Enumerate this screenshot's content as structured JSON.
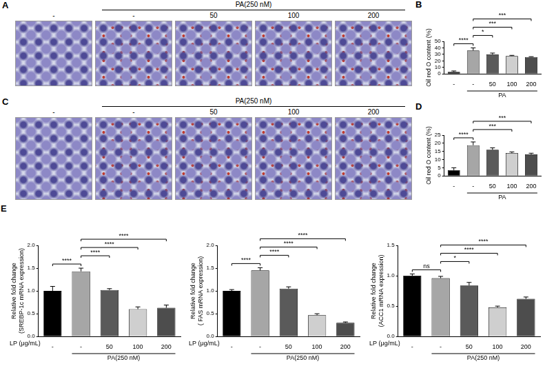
{
  "images": [
    {
      "letter": "A",
      "header": "PA(250 nM)",
      "header_from": 1,
      "header_to": 4,
      "columns": [
        "-",
        "-",
        "50",
        "100",
        "200"
      ]
    },
    {
      "letter": "C",
      "header": "PA(250 nM)",
      "header_from": 1,
      "header_to": 4,
      "columns": [
        "-",
        "-",
        "50",
        "100",
        "200"
      ]
    }
  ],
  "chart_data": [
    {
      "letter": "B",
      "type": "bar",
      "y_label": "Oil red O content (%)",
      "categories": [
        "-",
        "-",
        "50",
        "100",
        "200"
      ],
      "values": [
        3,
        36,
        30,
        27.5,
        26
      ],
      "errors": [
        1.5,
        4,
        2,
        1,
        0.5
      ],
      "colors": [
        "#000000",
        "#a6a6a6",
        "#5a5a5a",
        "#cfcfcf",
        "#4d4d4d"
      ],
      "ylim": [
        0,
        50
      ],
      "yticks": [
        0,
        10,
        20,
        30,
        40,
        50
      ],
      "grid": false,
      "group": {
        "label": "PA",
        "from": 1,
        "to": 4
      },
      "significance": [
        {
          "from": 0,
          "to": 1,
          "label": "****"
        },
        {
          "from": 1,
          "to": 2,
          "label": "*"
        },
        {
          "from": 1,
          "to": 3,
          "label": "***"
        },
        {
          "from": 1,
          "to": 4,
          "label": "***"
        }
      ]
    },
    {
      "letter": "D",
      "type": "bar",
      "y_label": "Oil red O content (%)",
      "categories": [
        "-",
        "-",
        "50",
        "100",
        "200"
      ],
      "values": [
        3.5,
        18.8,
        16,
        14,
        13.2
      ],
      "errors": [
        1.5,
        2,
        1.2,
        0.7,
        0.7
      ],
      "colors": [
        "#000000",
        "#a6a6a6",
        "#5a5a5a",
        "#cfcfcf",
        "#4d4d4d"
      ],
      "ylim": [
        0,
        25
      ],
      "yticks": [
        0,
        5,
        10,
        15,
        20,
        25
      ],
      "grid": false,
      "group": {
        "label": "PA",
        "from": 1,
        "to": 4
      },
      "significance": [
        {
          "from": 0,
          "to": 1,
          "label": "****"
        },
        {
          "from": 1,
          "to": 3,
          "label": "***"
        },
        {
          "from": 1,
          "to": 4,
          "label": "***"
        }
      ]
    },
    {
      "letter": "E",
      "type": "bar",
      "y_label": [
        "Relative fold change",
        "(SREBP-1c mRNA expression)"
      ],
      "x_label": "LP (μg/mL)",
      "categories": [
        "-",
        "-",
        "50",
        "100",
        "200"
      ],
      "values": [
        1.0,
        1.43,
        1.02,
        0.6,
        0.63
      ],
      "errors": [
        0.1,
        0.07,
        0.03,
        0.05,
        0.06
      ],
      "colors": [
        "#000000",
        "#a6a6a6",
        "#5a5a5a",
        "#cfcfcf",
        "#4d4d4d"
      ],
      "ylim": [
        0,
        2
      ],
      "yticks": [
        {
          "value": 0,
          "label": "0.0"
        },
        {
          "value": 0.5,
          "label": "0.5"
        },
        {
          "value": 1,
          "label": "1.0"
        },
        {
          "value": 1.5,
          "label": "1.5"
        },
        {
          "value": 2,
          "label": "2.0"
        }
      ],
      "grid": false,
      "group": {
        "label": "PA(250 nM)",
        "from": 1,
        "to": 4
      },
      "significance": [
        {
          "from": 0,
          "to": 1,
          "label": "****"
        },
        {
          "from": 1,
          "to": 2,
          "label": "****"
        },
        {
          "from": 1,
          "to": 3,
          "label": "****"
        },
        {
          "from": 1,
          "to": 4,
          "label": "****"
        }
      ]
    },
    {
      "type": "bar",
      "y_label": [
        "Relative fold change",
        "( FAS mRNA expression)"
      ],
      "x_label": "LP (μg/mL)",
      "categories": [
        "-",
        "-",
        "50",
        "100",
        "200"
      ],
      "values": [
        1.0,
        1.45,
        1.05,
        0.47,
        0.3
      ],
      "errors": [
        0.03,
        0.06,
        0.04,
        0.03,
        0.02
      ],
      "colors": [
        "#000000",
        "#a6a6a6",
        "#5a5a5a",
        "#cfcfcf",
        "#4d4d4d"
      ],
      "ylim": [
        0,
        2
      ],
      "yticks": [
        {
          "value": 0,
          "label": "0.0"
        },
        {
          "value": 0.5,
          "label": "0.5"
        },
        {
          "value": 1,
          "label": "1.0"
        },
        {
          "value": 1.5,
          "label": "1.5"
        },
        {
          "value": 2,
          "label": "2.0"
        }
      ],
      "grid": false,
      "group": {
        "label": "PA(250 nM)",
        "from": 1,
        "to": 4
      },
      "significance": [
        {
          "from": 0,
          "to": 1,
          "label": "****"
        },
        {
          "from": 1,
          "to": 2,
          "label": "****"
        },
        {
          "from": 1,
          "to": 3,
          "label": "****"
        },
        {
          "from": 1,
          "to": 4,
          "label": "****"
        }
      ]
    },
    {
      "type": "bar",
      "y_label": [
        "Relative fold change",
        "(ACC1 mRNA expression)"
      ],
      "x_label": "LP (μg/mL)",
      "categories": [
        "-",
        "-",
        "50",
        "100",
        "200"
      ],
      "values": [
        1.0,
        0.96,
        0.84,
        0.48,
        0.62
      ],
      "errors": [
        0.03,
        0.03,
        0.05,
        0.02,
        0.03
      ],
      "colors": [
        "#000000",
        "#a6a6a6",
        "#5a5a5a",
        "#cfcfcf",
        "#4d4d4d"
      ],
      "ylim": [
        0,
        1.5
      ],
      "yticks": [
        {
          "value": 0,
          "label": "0.0"
        },
        {
          "value": 0.5,
          "label": "0.5"
        },
        {
          "value": 1,
          "label": "1.0"
        },
        {
          "value": 1.5,
          "label": "1.5"
        }
      ],
      "grid": false,
      "group": {
        "label": "PA(250 nM)",
        "from": 1,
        "to": 4
      },
      "significance": [
        {
          "from": 0,
          "to": 1,
          "label": "ns"
        },
        {
          "from": 1,
          "to": 2,
          "label": "*"
        },
        {
          "from": 1,
          "to": 3,
          "label": "****"
        },
        {
          "from": 1,
          "to": 4,
          "label": "****"
        }
      ]
    }
  ]
}
